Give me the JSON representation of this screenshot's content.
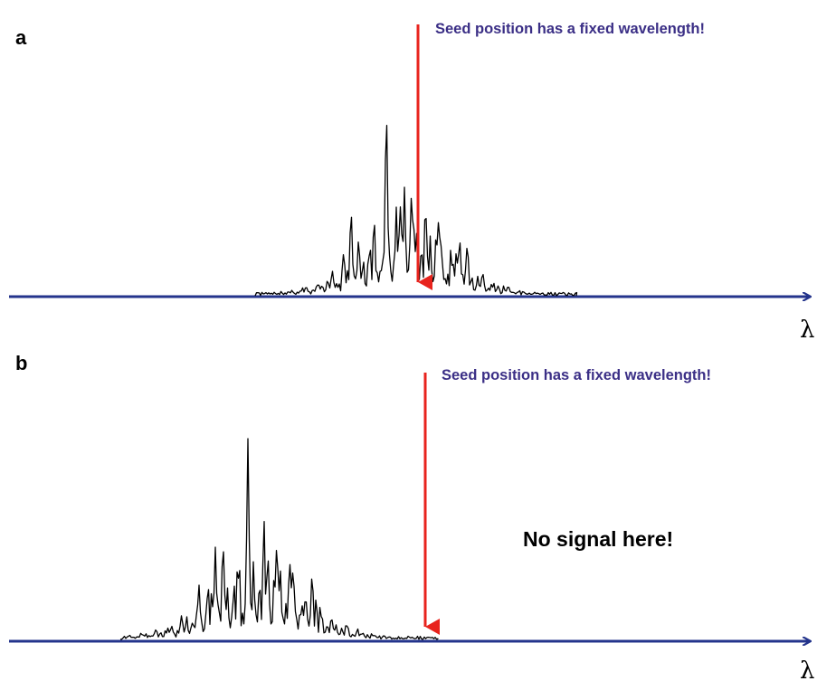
{
  "panels": [
    {
      "letter": "a",
      "seed_label": "Seed position has a fixed wavelength!",
      "axis_label": "λ",
      "note": ""
    },
    {
      "letter": "b",
      "seed_label": "Seed position has a fixed wavelength!",
      "axis_label": "λ",
      "note": "No signal here!"
    }
  ],
  "colors": {
    "axis": "#24348c",
    "seed_arrow": "#e8231d",
    "seed_label": "#3b2f86",
    "spectrum": "#000000"
  },
  "chart_data": [
    {
      "type": "line",
      "panel": "a",
      "series": [
        {
          "values": []
        }
      ],
      "x": [],
      "xlabel": "λ",
      "ylabel": "",
      "annotations": [
        "Seed position has a fixed wavelength!"
      ],
      "grid": false,
      "legend": "none"
    },
    {
      "type": "line",
      "panel": "b",
      "series": [
        {
          "values": []
        }
      ],
      "x": [],
      "xlabel": "λ",
      "ylabel": "",
      "annotations": [
        "Seed position has a fixed wavelength!",
        "No signal here!"
      ],
      "grid": false,
      "legend": "none"
    }
  ]
}
